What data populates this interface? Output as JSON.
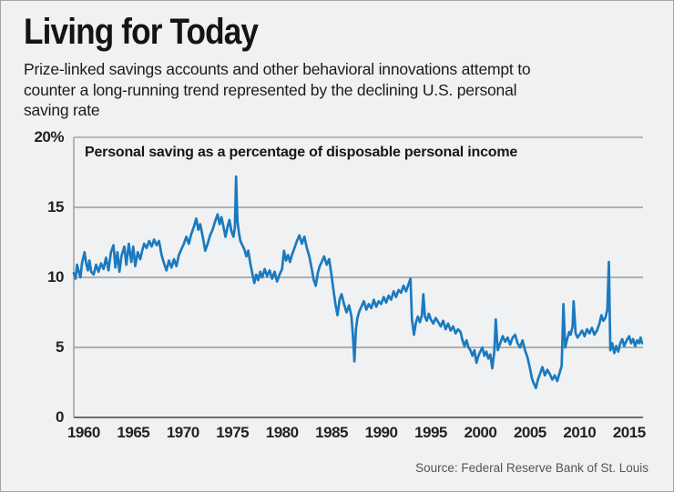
{
  "header": {
    "title": "Living for Today",
    "subtitle_lines": [
      "Prize-linked savings accounts and other behavioral innovations attempt to",
      "counter a long-running trend represented by the declining U.S. personal",
      "saving rate"
    ]
  },
  "footer": {
    "source": "Source: Federal Reserve Bank of St. Louis"
  },
  "colors": {
    "line": "#1b7abf",
    "grid": "#9a9a9a",
    "axis": "#6e6e6e",
    "background": "#f0f1f2"
  },
  "chart_data": {
    "type": "line",
    "title": "Personal saving as a percentage of disposable personal income",
    "series_name": "U.S. personal saving rate (% of disposable personal income)",
    "xlabel": "",
    "ylabel": "",
    "xlim": [
      1959.0,
      2016.4
    ],
    "ylim": [
      0,
      20
    ],
    "grid": "horizontal",
    "legend": "none",
    "xtick_values": [
      1960,
      1965,
      1970,
      1975,
      1980,
      1985,
      1990,
      1995,
      2000,
      2005,
      2010,
      2015
    ],
    "xtick_labels": [
      "1960",
      "1965",
      "1970",
      "1975",
      "1980",
      "1985",
      "1990",
      "1995",
      "2000",
      "2005",
      "2010",
      "2015"
    ],
    "ytick_values": [
      0,
      5,
      10,
      15,
      20
    ],
    "ytick_labels": [
      "0",
      "5",
      "10",
      "15",
      "20%"
    ],
    "points": [
      [
        1959.0,
        10.3
      ],
      [
        1959.17,
        9.9
      ],
      [
        1959.33,
        10.9
      ],
      [
        1959.5,
        10.4
      ],
      [
        1959.67,
        10.0
      ],
      [
        1959.83,
        11.0
      ],
      [
        1960.08,
        11.8
      ],
      [
        1960.25,
        11.0
      ],
      [
        1960.42,
        10.5
      ],
      [
        1960.58,
        11.2
      ],
      [
        1960.75,
        10.4
      ],
      [
        1961.0,
        10.2
      ],
      [
        1961.25,
        10.9
      ],
      [
        1961.5,
        10.4
      ],
      [
        1961.75,
        11.0
      ],
      [
        1962.0,
        10.6
      ],
      [
        1962.25,
        11.4
      ],
      [
        1962.5,
        10.5
      ],
      [
        1962.75,
        11.8
      ],
      [
        1963.0,
        12.3
      ],
      [
        1963.2,
        10.7
      ],
      [
        1963.4,
        11.8
      ],
      [
        1963.6,
        10.4
      ],
      [
        1963.8,
        11.5
      ],
      [
        1964.1,
        12.2
      ],
      [
        1964.3,
        10.9
      ],
      [
        1964.55,
        12.4
      ],
      [
        1964.8,
        11.1
      ],
      [
        1965.0,
        12.2
      ],
      [
        1965.2,
        10.8
      ],
      [
        1965.45,
        11.8
      ],
      [
        1965.7,
        11.3
      ],
      [
        1965.9,
        11.9
      ],
      [
        1966.1,
        12.4
      ],
      [
        1966.35,
        12.1
      ],
      [
        1966.6,
        12.6
      ],
      [
        1966.85,
        12.2
      ],
      [
        1967.1,
        12.7
      ],
      [
        1967.35,
        12.3
      ],
      [
        1967.6,
        12.6
      ],
      [
        1967.85,
        11.6
      ],
      [
        1968.1,
        11.0
      ],
      [
        1968.35,
        10.5
      ],
      [
        1968.6,
        11.2
      ],
      [
        1968.85,
        10.7
      ],
      [
        1969.1,
        11.3
      ],
      [
        1969.35,
        10.8
      ],
      [
        1969.6,
        11.6
      ],
      [
        1969.85,
        12.0
      ],
      [
        1970.1,
        12.4
      ],
      [
        1970.35,
        12.9
      ],
      [
        1970.6,
        12.4
      ],
      [
        1970.85,
        13.1
      ],
      [
        1971.1,
        13.6
      ],
      [
        1971.35,
        14.2
      ],
      [
        1971.55,
        13.4
      ],
      [
        1971.75,
        13.8
      ],
      [
        1972.0,
        12.9
      ],
      [
        1972.25,
        11.9
      ],
      [
        1972.5,
        12.4
      ],
      [
        1972.75,
        13.0
      ],
      [
        1973.0,
        13.4
      ],
      [
        1973.25,
        14.0
      ],
      [
        1973.5,
        14.5
      ],
      [
        1973.7,
        13.8
      ],
      [
        1973.9,
        14.3
      ],
      [
        1974.1,
        13.6
      ],
      [
        1974.3,
        12.9
      ],
      [
        1974.5,
        13.6
      ],
      [
        1974.7,
        14.1
      ],
      [
        1974.9,
        13.3
      ],
      [
        1975.1,
        12.9
      ],
      [
        1975.25,
        13.6
      ],
      [
        1975.37,
        17.2
      ],
      [
        1975.5,
        14.0
      ],
      [
        1975.65,
        13.2
      ],
      [
        1975.8,
        12.6
      ],
      [
        1976.0,
        12.3
      ],
      [
        1976.2,
        12.0
      ],
      [
        1976.4,
        11.5
      ],
      [
        1976.6,
        11.9
      ],
      [
        1976.8,
        11.0
      ],
      [
        1977.0,
        10.3
      ],
      [
        1977.2,
        9.6
      ],
      [
        1977.4,
        10.2
      ],
      [
        1977.6,
        9.8
      ],
      [
        1977.8,
        10.4
      ],
      [
        1978.0,
        10.0
      ],
      [
        1978.25,
        10.6
      ],
      [
        1978.5,
        10.1
      ],
      [
        1978.75,
        10.5
      ],
      [
        1979.0,
        9.9
      ],
      [
        1979.25,
        10.4
      ],
      [
        1979.5,
        9.7
      ],
      [
        1979.75,
        10.2
      ],
      [
        1980.0,
        10.6
      ],
      [
        1980.2,
        11.9
      ],
      [
        1980.4,
        11.2
      ],
      [
        1980.6,
        11.6
      ],
      [
        1980.8,
        11.1
      ],
      [
        1981.0,
        11.6
      ],
      [
        1981.25,
        12.1
      ],
      [
        1981.5,
        12.6
      ],
      [
        1981.75,
        13.0
      ],
      [
        1982.0,
        12.4
      ],
      [
        1982.25,
        12.9
      ],
      [
        1982.5,
        12.1
      ],
      [
        1982.75,
        11.5
      ],
      [
        1983.0,
        10.6
      ],
      [
        1983.2,
        9.8
      ],
      [
        1983.4,
        9.4
      ],
      [
        1983.6,
        10.3
      ],
      [
        1983.8,
        10.8
      ],
      [
        1984.0,
        11.1
      ],
      [
        1984.25,
        11.5
      ],
      [
        1984.5,
        10.9
      ],
      [
        1984.75,
        11.3
      ],
      [
        1985.0,
        10.1
      ],
      [
        1985.2,
        9.0
      ],
      [
        1985.4,
        8.0
      ],
      [
        1985.6,
        7.3
      ],
      [
        1985.8,
        8.4
      ],
      [
        1986.0,
        8.8
      ],
      [
        1986.25,
        8.1
      ],
      [
        1986.5,
        7.5
      ],
      [
        1986.75,
        8.0
      ],
      [
        1987.0,
        7.2
      ],
      [
        1987.15,
        5.8
      ],
      [
        1987.3,
        4.0
      ],
      [
        1987.45,
        6.3
      ],
      [
        1987.6,
        7.1
      ],
      [
        1987.8,
        7.6
      ],
      [
        1988.0,
        7.9
      ],
      [
        1988.25,
        8.3
      ],
      [
        1988.5,
        7.7
      ],
      [
        1988.75,
        8.1
      ],
      [
        1989.0,
        7.8
      ],
      [
        1989.25,
        8.4
      ],
      [
        1989.5,
        7.9
      ],
      [
        1989.75,
        8.3
      ],
      [
        1990.0,
        8.1
      ],
      [
        1990.25,
        8.6
      ],
      [
        1990.5,
        8.2
      ],
      [
        1990.75,
        8.7
      ],
      [
        1991.0,
        8.4
      ],
      [
        1991.25,
        9.0
      ],
      [
        1991.5,
        8.6
      ],
      [
        1991.75,
        9.1
      ],
      [
        1992.0,
        8.9
      ],
      [
        1992.25,
        9.4
      ],
      [
        1992.5,
        9.0
      ],
      [
        1992.75,
        9.5
      ],
      [
        1992.95,
        9.9
      ],
      [
        1993.1,
        7.0
      ],
      [
        1993.3,
        5.9
      ],
      [
        1993.5,
        6.8
      ],
      [
        1993.7,
        7.2
      ],
      [
        1993.9,
        6.8
      ],
      [
        1994.1,
        7.3
      ],
      [
        1994.25,
        8.8
      ],
      [
        1994.4,
        7.2
      ],
      [
        1994.6,
        6.9
      ],
      [
        1994.8,
        7.4
      ],
      [
        1995.0,
        7.0
      ],
      [
        1995.25,
        6.7
      ],
      [
        1995.5,
        7.1
      ],
      [
        1995.75,
        6.8
      ],
      [
        1996.0,
        6.5
      ],
      [
        1996.25,
        6.9
      ],
      [
        1996.5,
        6.3
      ],
      [
        1996.75,
        6.7
      ],
      [
        1997.0,
        6.2
      ],
      [
        1997.25,
        6.5
      ],
      [
        1997.5,
        6.0
      ],
      [
        1997.75,
        6.3
      ],
      [
        1998.0,
        6.1
      ],
      [
        1998.2,
        5.5
      ],
      [
        1998.4,
        5.1
      ],
      [
        1998.6,
        5.5
      ],
      [
        1998.8,
        5.0
      ],
      [
        1999.0,
        4.8
      ],
      [
        1999.2,
        4.4
      ],
      [
        1999.4,
        4.8
      ],
      [
        1999.6,
        3.9
      ],
      [
        1999.8,
        4.4
      ],
      [
        2000.0,
        4.7
      ],
      [
        2000.2,
        5.0
      ],
      [
        2000.4,
        4.4
      ],
      [
        2000.6,
        4.7
      ],
      [
        2000.8,
        4.2
      ],
      [
        2001.0,
        4.5
      ],
      [
        2001.2,
        3.5
      ],
      [
        2001.4,
        4.7
      ],
      [
        2001.55,
        7.0
      ],
      [
        2001.75,
        4.8
      ],
      [
        2002.0,
        5.3
      ],
      [
        2002.25,
        5.8
      ],
      [
        2002.5,
        5.4
      ],
      [
        2002.75,
        5.7
      ],
      [
        2003.0,
        5.2
      ],
      [
        2003.25,
        5.7
      ],
      [
        2003.5,
        5.9
      ],
      [
        2003.75,
        5.3
      ],
      [
        2004.0,
        5.0
      ],
      [
        2004.25,
        5.5
      ],
      [
        2004.5,
        4.8
      ],
      [
        2004.75,
        4.3
      ],
      [
        2005.0,
        3.5
      ],
      [
        2005.2,
        2.8
      ],
      [
        2005.4,
        2.4
      ],
      [
        2005.6,
        2.1
      ],
      [
        2005.8,
        2.7
      ],
      [
        2006.0,
        3.1
      ],
      [
        2006.25,
        3.6
      ],
      [
        2006.5,
        3.0
      ],
      [
        2006.75,
        3.4
      ],
      [
        2007.0,
        3.1
      ],
      [
        2007.25,
        2.7
      ],
      [
        2007.5,
        3.0
      ],
      [
        2007.75,
        2.6
      ],
      [
        2008.0,
        3.2
      ],
      [
        2008.2,
        3.7
      ],
      [
        2008.37,
        8.1
      ],
      [
        2008.55,
        5.0
      ],
      [
        2008.75,
        5.6
      ],
      [
        2008.95,
        6.1
      ],
      [
        2009.1,
        5.9
      ],
      [
        2009.3,
        6.5
      ],
      [
        2009.4,
        8.3
      ],
      [
        2009.6,
        6.0
      ],
      [
        2009.8,
        5.7
      ],
      [
        2010.0,
        5.9
      ],
      [
        2010.25,
        6.2
      ],
      [
        2010.5,
        5.8
      ],
      [
        2010.75,
        6.3
      ],
      [
        2011.0,
        6.0
      ],
      [
        2011.25,
        6.4
      ],
      [
        2011.5,
        5.9
      ],
      [
        2011.75,
        6.2
      ],
      [
        2012.0,
        6.7
      ],
      [
        2012.2,
        7.3
      ],
      [
        2012.4,
        6.9
      ],
      [
        2012.6,
        7.1
      ],
      [
        2012.8,
        7.7
      ],
      [
        2012.96,
        11.1
      ],
      [
        2013.1,
        4.8
      ],
      [
        2013.3,
        5.3
      ],
      [
        2013.5,
        4.6
      ],
      [
        2013.7,
        5.1
      ],
      [
        2013.9,
        4.7
      ],
      [
        2014.1,
        5.3
      ],
      [
        2014.3,
        5.6
      ],
      [
        2014.5,
        5.1
      ],
      [
        2014.75,
        5.5
      ],
      [
        2015.0,
        5.8
      ],
      [
        2015.2,
        5.3
      ],
      [
        2015.4,
        5.6
      ],
      [
        2015.6,
        5.1
      ],
      [
        2015.8,
        5.5
      ],
      [
        2016.0,
        5.3
      ],
      [
        2016.15,
        5.7
      ],
      [
        2016.3,
        5.3
      ]
    ]
  }
}
